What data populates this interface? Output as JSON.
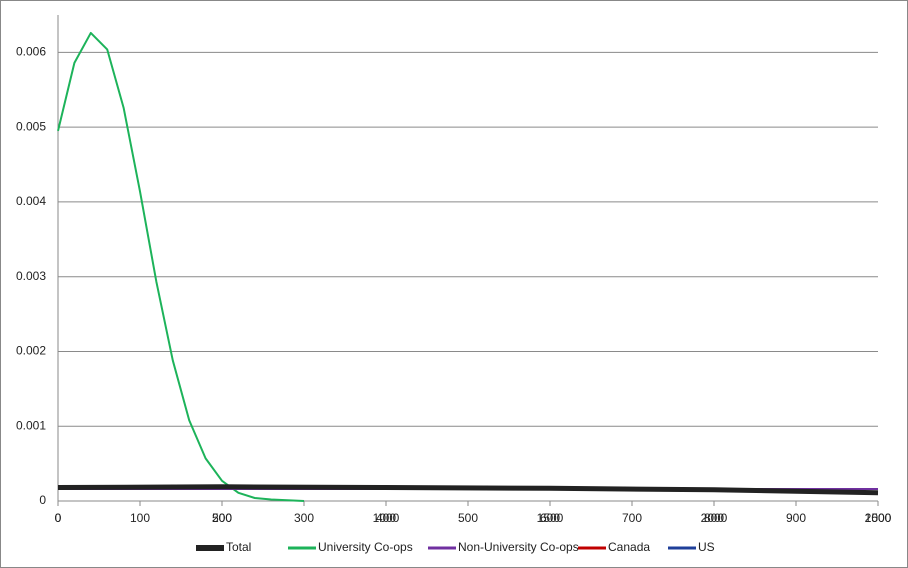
{
  "chart_data": {
    "type": "line",
    "xlim": [
      0,
      2500
    ],
    "xticks": [
      0,
      500,
      1000,
      1500,
      2000,
      2500
    ],
    "x2lim": [
      0,
      1000
    ],
    "x2ticks": [
      0,
      100,
      200,
      300,
      400,
      500,
      600,
      700,
      800,
      900,
      1000
    ],
    "ylim": [
      0,
      0.0065
    ],
    "yticks": [
      0,
      0.001,
      0.002,
      0.003,
      0.004,
      0.005,
      0.006
    ],
    "grid": true,
    "legend": "bottom",
    "series": [
      {
        "name": "Total",
        "color": "#222222",
        "width": 5,
        "x": [
          0,
          500,
          1000,
          1500,
          2000,
          2500
        ],
        "values": [
          0.00018,
          0.00019,
          0.00018,
          0.00017,
          0.00015,
          0.00011
        ]
      },
      {
        "name": "University Co-ops",
        "color": "#1db35a",
        "width": 2,
        "axis": "x2",
        "x": [
          0,
          20,
          40,
          60,
          80,
          100,
          120,
          140,
          160,
          180,
          200,
          220,
          240,
          260,
          280,
          300
        ],
        "values": [
          0.00495,
          0.00586,
          0.00626,
          0.00604,
          0.00526,
          0.00414,
          0.00293,
          0.00188,
          0.00108,
          0.00057,
          0.00027,
          0.00011,
          4e-05,
          2e-05,
          1e-05,
          0
        ]
      },
      {
        "name": "Non-University Co-ops",
        "color": "#7030a0",
        "width": 2,
        "x": [
          0,
          500,
          1000,
          1500,
          2000,
          2500
        ],
        "values": [
          0.00016,
          0.00016,
          0.00016,
          0.00016,
          0.00016,
          0.00016
        ]
      },
      {
        "name": "Canada",
        "color": "#c00000",
        "width": 2,
        "x": [
          0,
          500,
          1000,
          1500,
          2000,
          2500
        ],
        "values": [
          0.00018,
          0.00019,
          0.00018,
          0.00017,
          0.00015,
          0.00011
        ]
      },
      {
        "name": "US",
        "color": "#1f3f99",
        "width": 2,
        "x": [
          0,
          500,
          1000,
          1500,
          2000,
          2500
        ],
        "values": [
          0.00018,
          0.00019,
          0.00018,
          0.00017,
          0.00015,
          0.00011
        ]
      }
    ]
  }
}
